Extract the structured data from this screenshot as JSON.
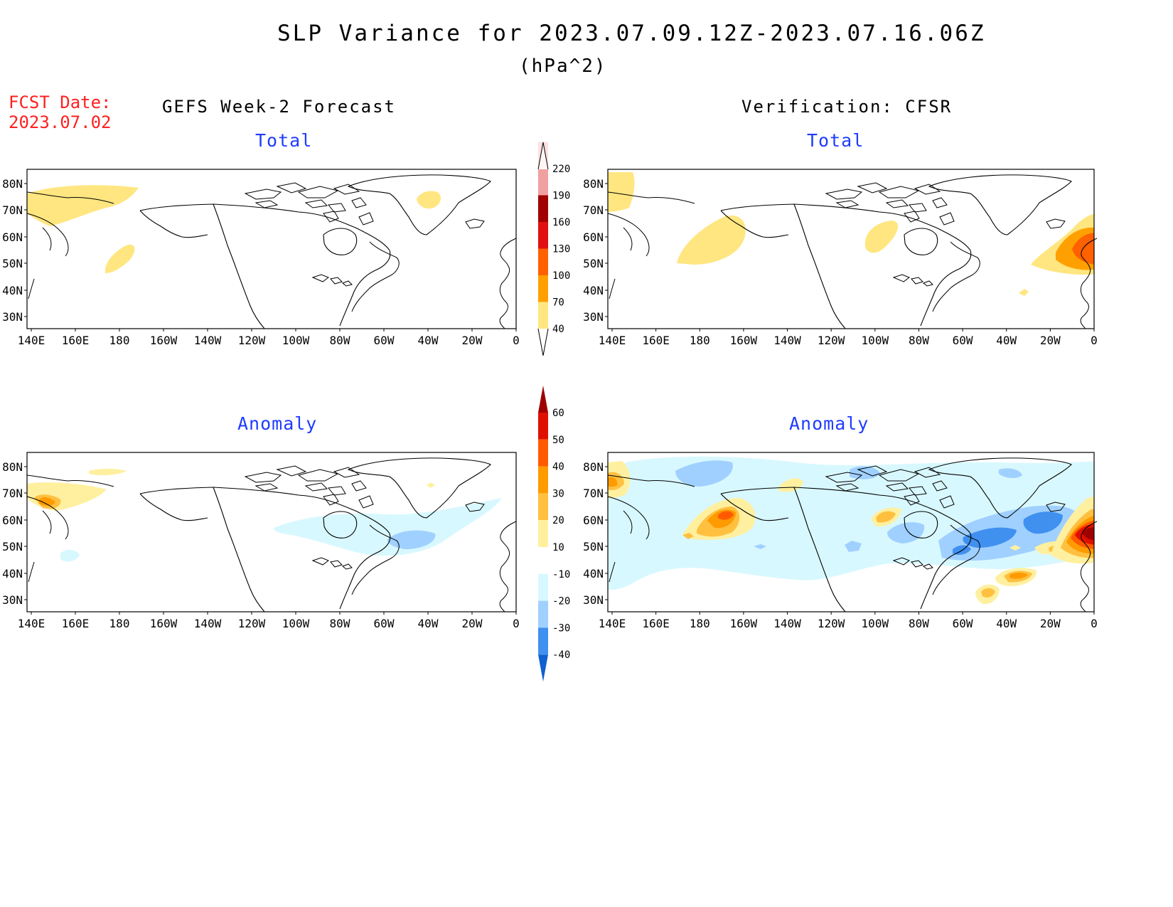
{
  "header": {
    "title": "SLP Variance for 2023.07.09.12Z-2023.07.16.06Z",
    "units": "(hPa^2)",
    "fcst_label": "FCST Date:",
    "fcst_date": "2023.07.02"
  },
  "columns": {
    "left": "GEFS Week-2 Forecast",
    "right": "Verification: CFSR"
  },
  "panel_titles": {
    "total_left": "Total",
    "total_right": "Total",
    "anomaly_left": "Anomaly",
    "anomaly_right": "Anomaly"
  },
  "axes": {
    "lat_labels": [
      "80N",
      "70N",
      "60N",
      "50N",
      "40N",
      "30N"
    ],
    "lon_labels": [
      "140E",
      "160E",
      "180",
      "160W",
      "140W",
      "120W",
      "100W",
      "80W",
      "60W",
      "40W",
      "20W",
      "0"
    ]
  },
  "colorbars": {
    "total": {
      "labels": [
        "40",
        "70",
        "100",
        "130",
        "160",
        "190",
        "220"
      ],
      "colors": [
        "#ffe680",
        "#ffa000",
        "#ff6000",
        "#e01010",
        "#a00000",
        "#f0a0a0",
        "#ffe0e0"
      ]
    },
    "anomaly": {
      "labels": [
        "60",
        "50",
        "40",
        "30",
        "20",
        "10",
        "-10",
        "-20",
        "-30",
        "-40"
      ],
      "colors": [
        "#a00000",
        "#e01000",
        "#ff5a00",
        "#ff9a00",
        "#ffc040",
        "#fff0a0",
        "#ffffff",
        "#d8f8ff",
        "#a0d0ff",
        "#4090f0",
        "#1060d0"
      ]
    }
  },
  "colors": {
    "title_red": "#ff2020",
    "panel_blue": "#1f3cff",
    "shade_light_yellow": "#ffe680",
    "shade_orange": "#ffa000",
    "shade_red": "#e01010",
    "shade_light_blue": "#d8f8ff",
    "shade_mid_blue": "#a0d0ff",
    "shade_blue": "#4090f0"
  }
}
